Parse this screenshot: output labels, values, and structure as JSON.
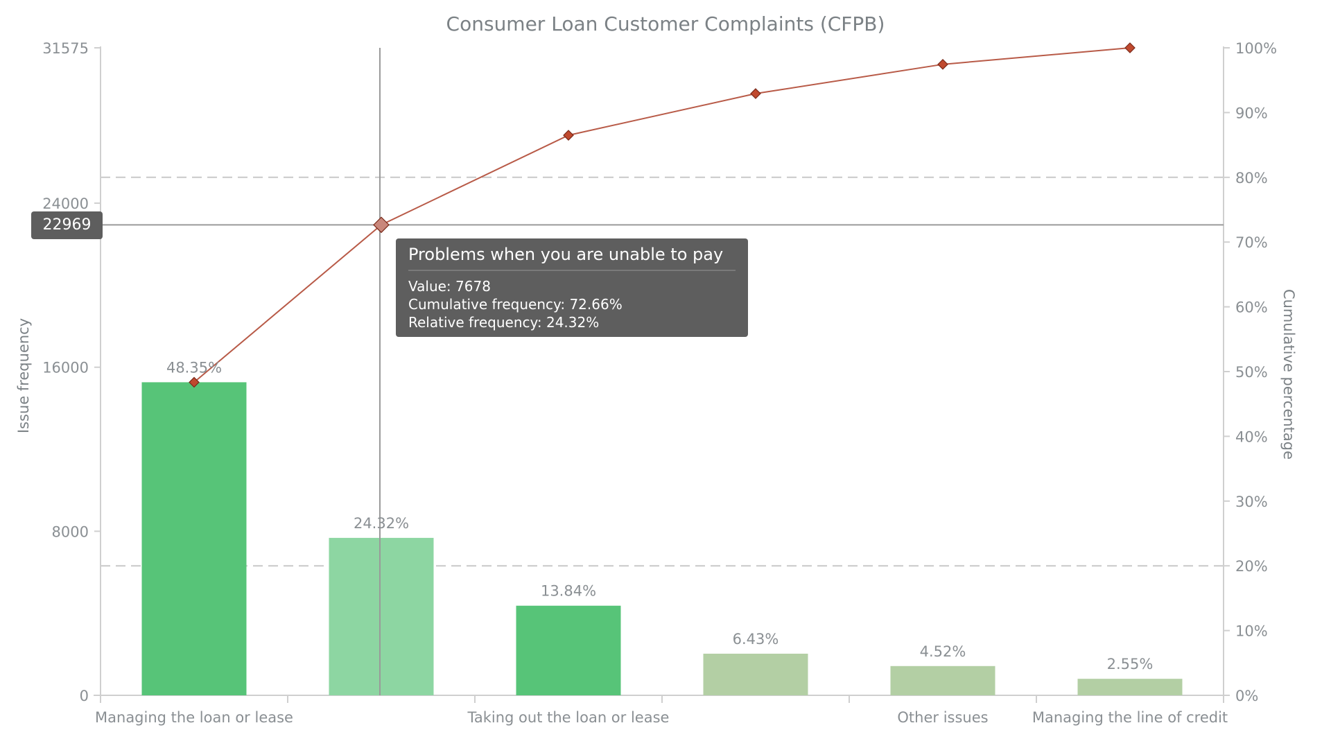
{
  "chart_data": {
    "type": "bar+line (pareto)",
    "title": "Consumer Loan Customer Complaints (CFPB)",
    "xlabel": "",
    "ylabel": "Issue frequency",
    "y2label": "Cumulative percentage",
    "ylim": [
      0,
      31575
    ],
    "y2lim": [
      0,
      100
    ],
    "yticks": [
      0,
      8000,
      16000,
      24000,
      31575
    ],
    "y2ticks": [
      "0%",
      "10%",
      "20%",
      "30%",
      "40%",
      "50%",
      "60%",
      "70%",
      "80%",
      "90%",
      "100%"
    ],
    "reference_lines_pct": [
      20,
      80
    ],
    "categories": [
      "Managing the loan or lease",
      "Problems when you are unable to pay",
      "Taking out the loan or lease",
      "",
      "Other issues",
      "Managing the line of credit"
    ],
    "visible_category_labels": [
      "Managing the loan or lease",
      "",
      "Taking out the loan or lease",
      "",
      "Other issues",
      "Managing the line of credit"
    ],
    "series": [
      {
        "name": "Issue frequency",
        "type": "bar",
        "values": [
          15267,
          7678,
          4370,
          2030,
          1427,
          805
        ]
      },
      {
        "name": "Relative frequency (%)",
        "type": "label",
        "values": [
          48.35,
          24.32,
          13.84,
          6.43,
          4.52,
          2.55
        ],
        "labels": [
          "48.35%",
          "24.32%",
          "13.84%",
          "6.43%",
          "4.52%",
          "2.55%"
        ]
      },
      {
        "name": "Cumulative frequency (%)",
        "type": "line",
        "values": [
          48.35,
          72.66,
          86.5,
          92.93,
          97.45,
          100
        ]
      }
    ],
    "bar_colors": [
      "#57c478",
      "#8dd6a2",
      "#57c478",
      "#b3cfa4",
      "#b3cfa4",
      "#b3cfa4"
    ],
    "line_color": "#b85a47",
    "marker_color": "#c0492e",
    "grid": false,
    "legend": "none"
  },
  "crosshair": {
    "y_value_label": "22969",
    "x_index": 1
  },
  "tooltip": {
    "title": "Problems when you are unable to pay",
    "value": "Value: 7678",
    "cumulative": "Cumulative frequency: 72.66%",
    "relative": "Relative frequency: 24.32%"
  }
}
